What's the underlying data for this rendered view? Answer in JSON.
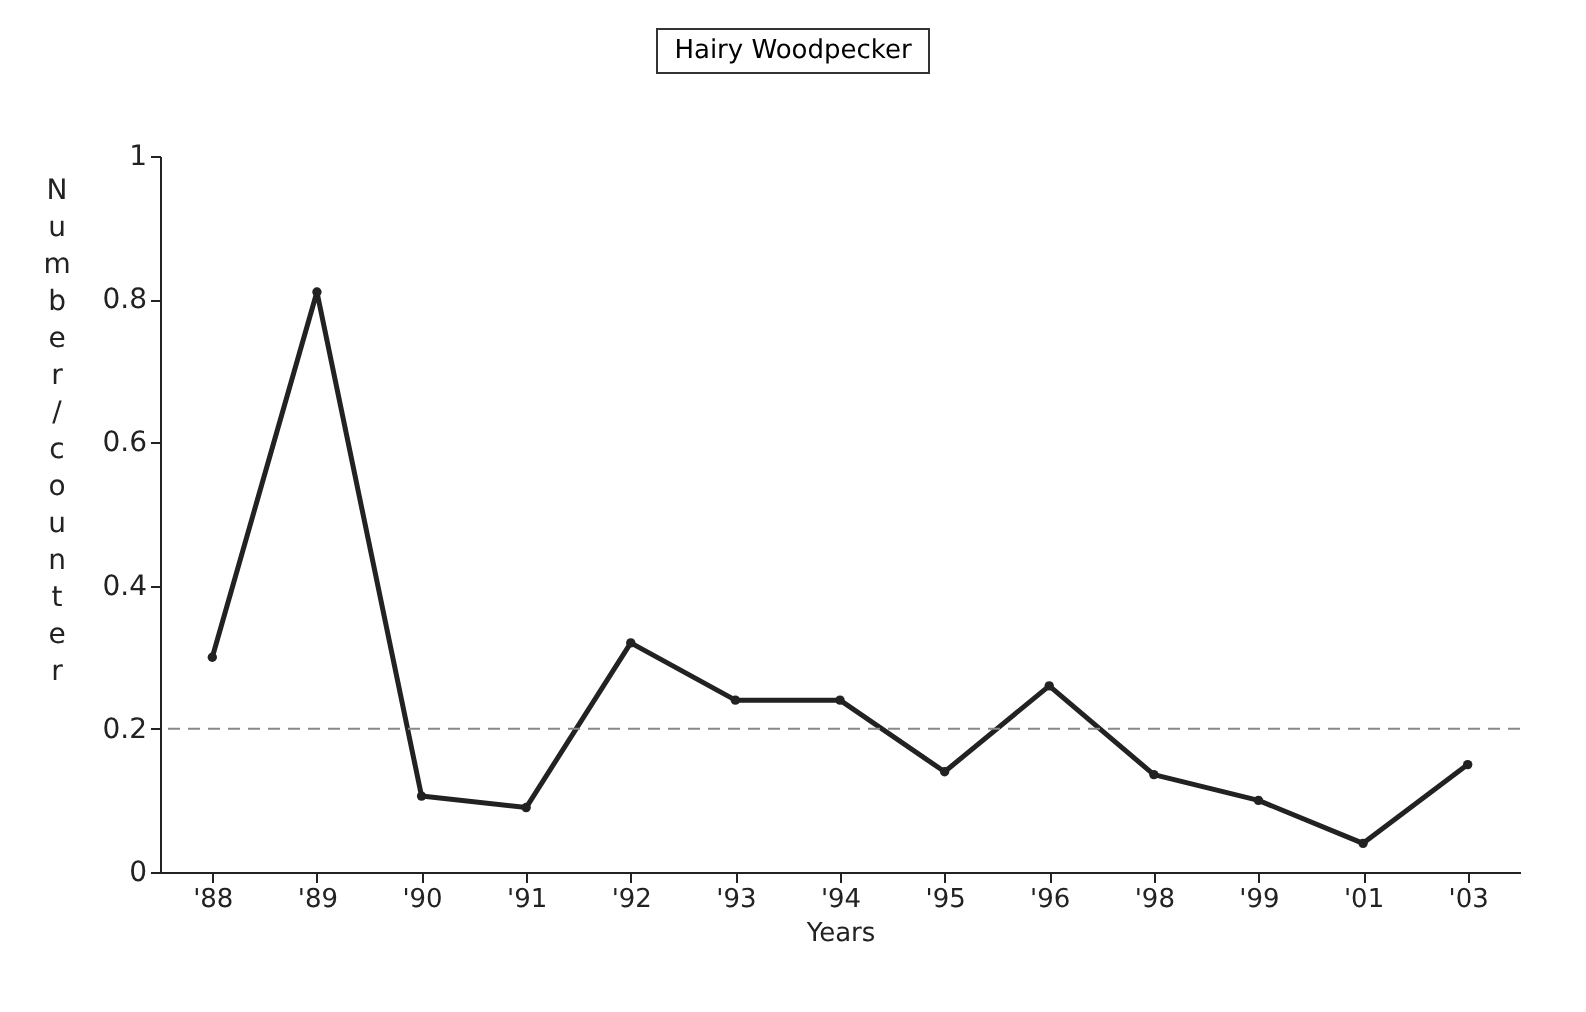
{
  "chart_data": {
    "type": "line",
    "title": "Hairy Woodpecker",
    "xlabel": "Years",
    "ylabel": "Number / counter",
    "categories": [
      "'88",
      "'89",
      "'90",
      "'91",
      "'92",
      "'93",
      "'94",
      "'95",
      "'96",
      "'98",
      "'99",
      "'01",
      "'03"
    ],
    "series": [
      {
        "color": "#222222",
        "values": [
          0.3,
          0.81,
          0.106,
          0.09,
          0.32,
          0.24,
          0.24,
          0.14,
          0.26,
          0.136,
          0.1,
          0.04,
          0.15
        ]
      }
    ],
    "ylim": [
      0,
      1
    ],
    "yticks": [
      0,
      0.2,
      0.4,
      0.6,
      0.8,
      1
    ],
    "ref_lines": [
      {
        "axis": "y",
        "value": 0.2,
        "color": "#888888",
        "line_style": "dashed"
      }
    ],
    "marker": "circle",
    "line_style": "solid",
    "grid": false
  }
}
